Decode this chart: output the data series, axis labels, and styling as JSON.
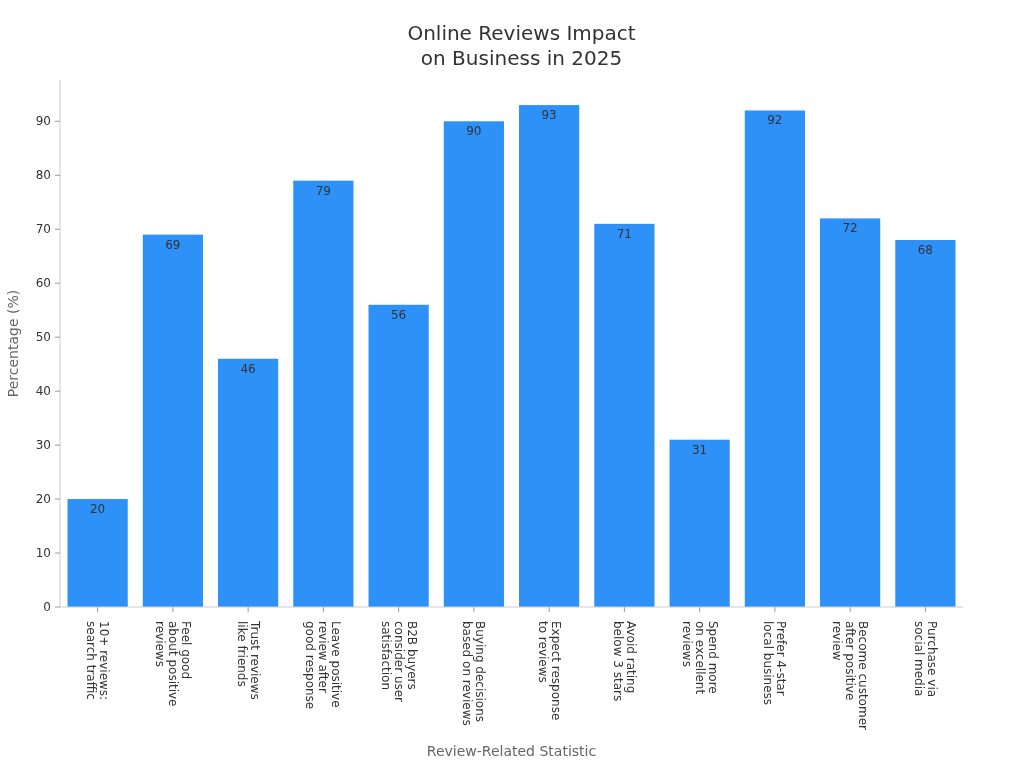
{
  "chart_data": {
    "type": "bar",
    "title": "Online Reviews Impact\non Business in 2025",
    "xlabel": "Review-Related Statistic",
    "ylabel": "Percentage (%)",
    "categories": [
      "10+ reviews:\nsearch traffic",
      "Feel good\nabout positive\nreviews",
      "Trust reviews\nlike friends",
      "Leave positive\nreview after\ngood response",
      "B2B buyers\nconsider user\nsatisfaction",
      "Buying decisions\nbased on reviews",
      "Expect response\nto reviews",
      "Avoid rating\nbelow 3 stars",
      "Spend more\non excellent\nreviews",
      "Prefer 4-star\nlocal business",
      "Become customer\nafter positive\nreview",
      "Purchase via\nsocial media"
    ],
    "values": [
      20,
      69,
      46,
      79,
      56,
      90,
      93,
      71,
      31,
      92,
      72,
      68
    ],
    "color": "#2d91f7",
    "ylim": [
      0,
      97.65
    ],
    "yticks": [
      0,
      10,
      20,
      30,
      40,
      50,
      60,
      70,
      80,
      90
    ],
    "grid": false,
    "data_labels": true
  }
}
